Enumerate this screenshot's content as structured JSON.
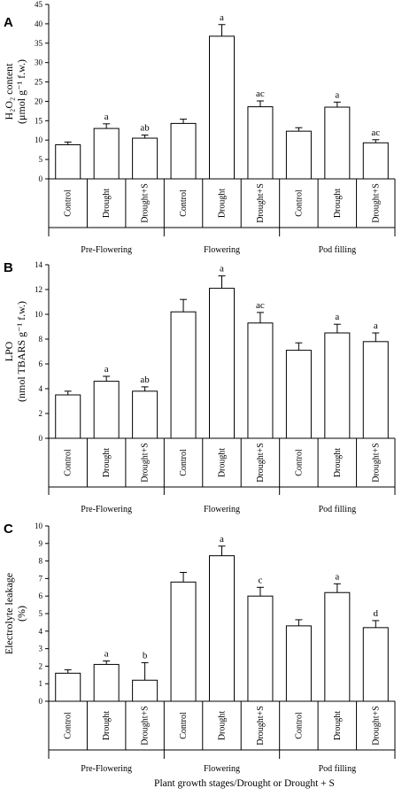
{
  "x_title": "Plant growth stages/Drought  or Drought + S",
  "chart_data": [
    {
      "type": "bar",
      "panel": "A",
      "ylabel_lines": [
        "H₂O₂ content",
        "(μmol  g⁻¹ f.w.)"
      ],
      "ylim": [
        0,
        45
      ],
      "yticks": [
        0,
        5,
        10,
        15,
        20,
        25,
        30,
        35,
        40,
        45
      ],
      "groups": [
        "Pre-Flowering",
        "Flowering",
        "Pod filling"
      ],
      "categories": [
        "Control",
        "Drought",
        "Drought+S",
        "Control",
        "Drought",
        "Drought+S",
        "Control",
        "Drought",
        "Drought+S"
      ],
      "values": [
        8.8,
        13.0,
        10.5,
        14.3,
        36.8,
        18.6,
        12.3,
        18.5,
        9.3
      ],
      "errors": [
        0.7,
        1.2,
        0.8,
        1.1,
        3.0,
        1.5,
        0.9,
        1.3,
        0.8
      ],
      "labels": [
        "",
        "a",
        "ab",
        "",
        "a",
        "ac",
        "",
        "a",
        "ac"
      ]
    },
    {
      "type": "bar",
      "panel": "B",
      "ylabel_lines": [
        "LPO",
        "(nmol TBARS  g⁻¹ f.w.)"
      ],
      "ylim": [
        0,
        14
      ],
      "yticks": [
        0,
        2,
        4,
        6,
        8,
        10,
        12,
        14
      ],
      "groups": [
        "Pre-Flowering",
        "Flowering",
        "Pod filling"
      ],
      "categories": [
        "Control",
        "Drought",
        "Drought+S",
        "Control",
        "Drought",
        "Drought+S",
        "Control",
        "Drought",
        "Drought+S"
      ],
      "values": [
        3.5,
        4.6,
        3.8,
        10.2,
        12.1,
        9.3,
        7.1,
        8.5,
        7.8
      ],
      "errors": [
        0.3,
        0.4,
        0.35,
        1.0,
        1.0,
        0.85,
        0.6,
        0.7,
        0.7
      ],
      "labels": [
        "",
        "a",
        "ab",
        "",
        "a",
        "ac",
        "",
        "a",
        "a"
      ]
    },
    {
      "type": "bar",
      "panel": "C",
      "ylabel_lines": [
        "Electrolyte leakage",
        "(%)"
      ],
      "ylim": [
        0,
        10
      ],
      "yticks": [
        0,
        1,
        2,
        3,
        4,
        5,
        6,
        7,
        8,
        9,
        10
      ],
      "groups": [
        "Pre-Flowering",
        "Flowering",
        "Pod filling"
      ],
      "categories": [
        "Control",
        "Drought",
        "Drought+S",
        "Control",
        "Drought",
        "Drought+S",
        "Control",
        "Drought",
        "Drought+S"
      ],
      "values": [
        1.6,
        2.1,
        1.2,
        6.8,
        8.3,
        6.0,
        4.3,
        6.2,
        4.2
      ],
      "errors": [
        0.2,
        0.2,
        1.0,
        0.55,
        0.55,
        0.5,
        0.35,
        0.5,
        0.4
      ],
      "labels": [
        "",
        "a",
        "b",
        "",
        "a",
        "c",
        "",
        "a",
        "d"
      ]
    }
  ]
}
